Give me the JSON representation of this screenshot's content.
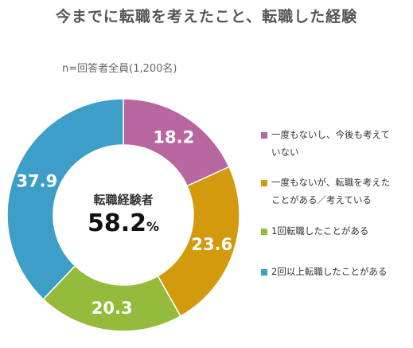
{
  "title": "今までに転職を考えたこと、転職した経験",
  "subtitle": "n=回答者全員(1,200名)",
  "center": {
    "label": "転職経験者",
    "value": "58.2",
    "unit": "%"
  },
  "colors": [
    "#b7669f",
    "#d39a0d",
    "#94bb3b",
    "#3d9ec7"
  ],
  "chart_data": {
    "type": "pie",
    "variant": "donut",
    "categories": [
      "一度もないし、今後も考えていない",
      "一度もないが、転職を考えたことがある／考えている",
      "1回転職したことがある",
      "2回以上転職したことがある"
    ],
    "values": [
      18.2,
      23.6,
      20.3,
      37.9
    ],
    "data_labels": [
      "18.2",
      "23.6",
      "20.3",
      "37.9"
    ],
    "legend_position": "right"
  },
  "legend": [
    {
      "lines": [
        "一度もないし、今後も考えて",
        "いない"
      ]
    },
    {
      "lines": [
        "一度もないが、転職を考えた",
        "ことがある／考えている"
      ]
    },
    {
      "lines": [
        "1回転職したことがある"
      ]
    },
    {
      "lines": [
        "2回以上転職したことがある"
      ]
    }
  ]
}
